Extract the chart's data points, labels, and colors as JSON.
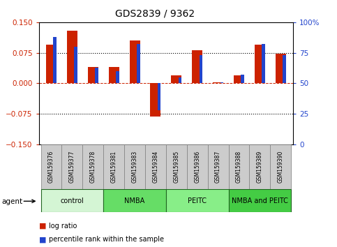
{
  "title": "GDS2839 / 9362",
  "samples": [
    "GSM159376",
    "GSM159377",
    "GSM159378",
    "GSM159381",
    "GSM159383",
    "GSM159384",
    "GSM159385",
    "GSM159386",
    "GSM159387",
    "GSM159388",
    "GSM159389",
    "GSM159390"
  ],
  "log_ratio": [
    0.095,
    0.13,
    0.04,
    0.04,
    0.105,
    -0.082,
    0.02,
    0.082,
    0.003,
    0.02,
    0.095,
    0.073
  ],
  "percentile": [
    88,
    80,
    63,
    60,
    82,
    28,
    55,
    73,
    51,
    57,
    82,
    73
  ],
  "agents": [
    {
      "label": "control",
      "start": 0,
      "end": 3,
      "color": "#d4f5d4"
    },
    {
      "label": "NMBA",
      "start": 3,
      "end": 6,
      "color": "#66dd66"
    },
    {
      "label": "PEITC",
      "start": 6,
      "end": 9,
      "color": "#88ee88"
    },
    {
      "label": "NMBA and PEITC",
      "start": 9,
      "end": 12,
      "color": "#44cc44"
    }
  ],
  "red_color": "#cc2200",
  "blue_color": "#2244cc",
  "ylim_left": [
    -0.15,
    0.15
  ],
  "yticks_left": [
    -0.15,
    -0.075,
    0,
    0.075,
    0.15
  ],
  "yticks_right_vals": [
    0,
    25,
    50,
    75,
    100
  ],
  "yticks_right_labels": [
    "0",
    "25",
    "50",
    "75",
    "100%"
  ],
  "dotted_lines": [
    0.075,
    0,
    -0.075
  ],
  "bar_width": 0.5,
  "blue_bar_width": 0.15,
  "sample_box_color": "#cccccc",
  "agent_border_color": "#226622"
}
